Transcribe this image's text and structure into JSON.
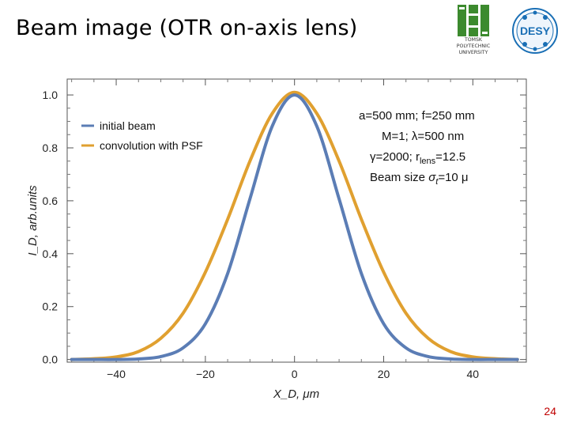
{
  "slide": {
    "title": "Beam image (OTR on-axis lens)",
    "page_number": "24"
  },
  "logos": {
    "tpu": {
      "line1": "TOMSK",
      "line2": "POLYTECHNIC",
      "line3": "UNIVERSITY",
      "color": "#3c8a2e"
    },
    "desy": {
      "text": "DESY",
      "color": "#1a6fb5"
    }
  },
  "chart_data": {
    "type": "line",
    "xlabel": "X_D, μm",
    "ylabel": "I_D, arb.units",
    "xlim": [
      -51,
      52
    ],
    "ylim": [
      -0.01,
      1.06
    ],
    "xticks": [
      -40,
      -20,
      0,
      20,
      40
    ],
    "xtick_labels": [
      "−40",
      "−20",
      "0",
      "20",
      "40"
    ],
    "yticks": [
      0.0,
      0.2,
      0.4,
      0.6,
      0.8,
      1.0
    ],
    "ytick_labels": [
      "0.0",
      "0.2",
      "0.4",
      "0.6",
      "0.8",
      "1.0"
    ],
    "grid": false,
    "legend_position": "top-left",
    "series": [
      {
        "name": "initial beam",
        "color": "#5b7db5",
        "x": [
          -50,
          -45,
          -40,
          -35,
          -30,
          -25,
          -20,
          -15,
          -10,
          -5,
          0,
          5,
          10,
          15,
          20,
          25,
          30,
          35,
          40,
          45,
          50
        ],
        "y": [
          0.0,
          0.0,
          0.0,
          0.002,
          0.011,
          0.044,
          0.135,
          0.325,
          0.607,
          0.882,
          1.0,
          0.882,
          0.607,
          0.325,
          0.135,
          0.044,
          0.011,
          0.002,
          0.0,
          0.0,
          0.0
        ]
      },
      {
        "name": "convolution with PSF",
        "color": "#e0a030",
        "x": [
          -50,
          -45,
          -40,
          -35,
          -30,
          -25,
          -20,
          -15,
          -10,
          -5,
          0,
          5,
          10,
          15,
          20,
          25,
          30,
          35,
          40,
          45,
          50
        ],
        "y": [
          0.0,
          0.003,
          0.01,
          0.03,
          0.08,
          0.175,
          0.33,
          0.53,
          0.75,
          0.93,
          1.01,
          0.93,
          0.75,
          0.53,
          0.33,
          0.175,
          0.08,
          0.03,
          0.01,
          0.003,
          0.0
        ]
      }
    ],
    "annotations": [
      {
        "id": "line1",
        "text": "a=500 mm; f=250 mm"
      },
      {
        "id": "line2",
        "text": "M=1; λ=500 nm"
      },
      {
        "id": "line3_pre",
        "text": "γ=2000; r"
      },
      {
        "id": "line3_sub",
        "text": "lens"
      },
      {
        "id": "line3_post",
        "text": "=12.5"
      },
      {
        "id": "line4_pre",
        "text": "Beam size "
      },
      {
        "id": "line4_sym",
        "text": "σ"
      },
      {
        "id": "line4_sub",
        "text": "t"
      },
      {
        "id": "line4_post",
        "text": "=10 μ"
      }
    ]
  }
}
